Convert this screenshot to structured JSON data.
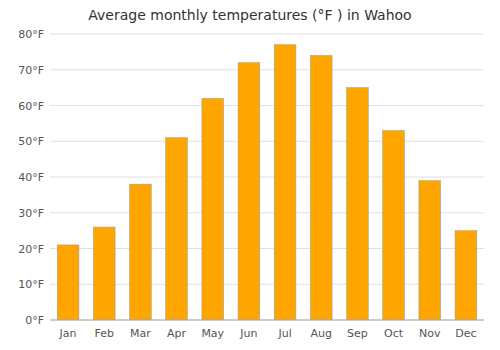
{
  "chart_data": {
    "type": "bar",
    "title": "Average monthly temperatures (°F ) in Wahoo",
    "categories": [
      "Jan",
      "Feb",
      "Mar",
      "Apr",
      "May",
      "Jun",
      "Jul",
      "Aug",
      "Sep",
      "Oct",
      "Nov",
      "Dec"
    ],
    "values": [
      21,
      26,
      38,
      51,
      62,
      72,
      77,
      74,
      65,
      53,
      39,
      25
    ],
    "color": "#ffa500",
    "ylim": [
      0,
      80
    ],
    "yticks": [
      {
        "value": 0,
        "label": "0°F"
      },
      {
        "value": 10,
        "label": "10°F"
      },
      {
        "value": 20,
        "label": "20°F"
      },
      {
        "value": 30,
        "label": "30°F"
      },
      {
        "value": 40,
        "label": "40°F"
      },
      {
        "value": 50,
        "label": "50°F"
      },
      {
        "value": 60,
        "label": "60°F"
      },
      {
        "value": 70,
        "label": "70°F"
      },
      {
        "value": 80,
        "label": "80°F"
      }
    ],
    "grid": true
  }
}
